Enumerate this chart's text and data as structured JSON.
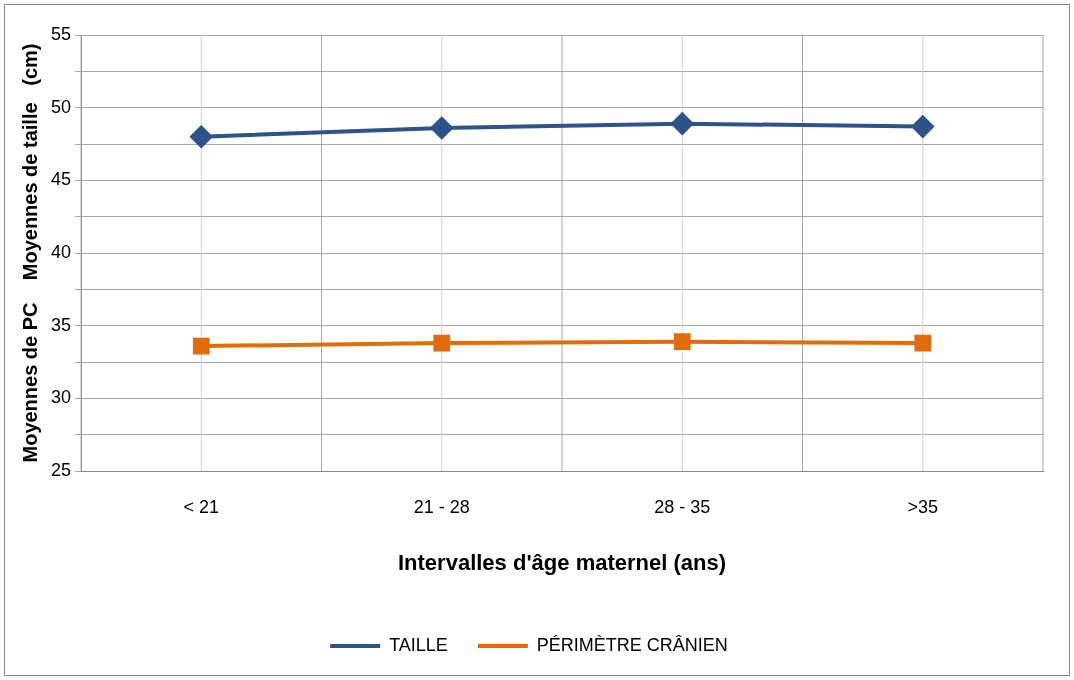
{
  "chart_data": {
    "type": "line",
    "xlabel": "Intervalles d'âge maternel (ans)",
    "ylabel": "Moyennes de PC    Moyennes de taille   (cm)",
    "categories": [
      "< 21",
      "21 - 28",
      "28 - 35",
      ">35"
    ],
    "series": [
      {
        "name": "TAILLE",
        "color": "#2c5489",
        "marker": "diamond",
        "values": [
          48.0,
          48.6,
          48.9,
          48.7
        ]
      },
      {
        "name": "PÉRIMÈTRE CRÂNIEN",
        "color": "#e36c0a",
        "marker": "square",
        "values": [
          33.6,
          33.8,
          33.9,
          33.8
        ]
      }
    ],
    "ylim": [
      25,
      55
    ],
    "yticks": [
      25,
      {
        "value": 27.5,
        "label": null
      },
      30,
      {
        "value": 32.5,
        "label": null
      },
      35,
      {
        "value": 37.5,
        "label": null
      },
      40,
      {
        "value": 42.5,
        "label": null
      },
      45,
      {
        "value": 47.5,
        "label": null
      },
      50,
      {
        "value": 52.5,
        "label": null
      },
      55
    ],
    "grid": true,
    "legend": "bottom"
  }
}
